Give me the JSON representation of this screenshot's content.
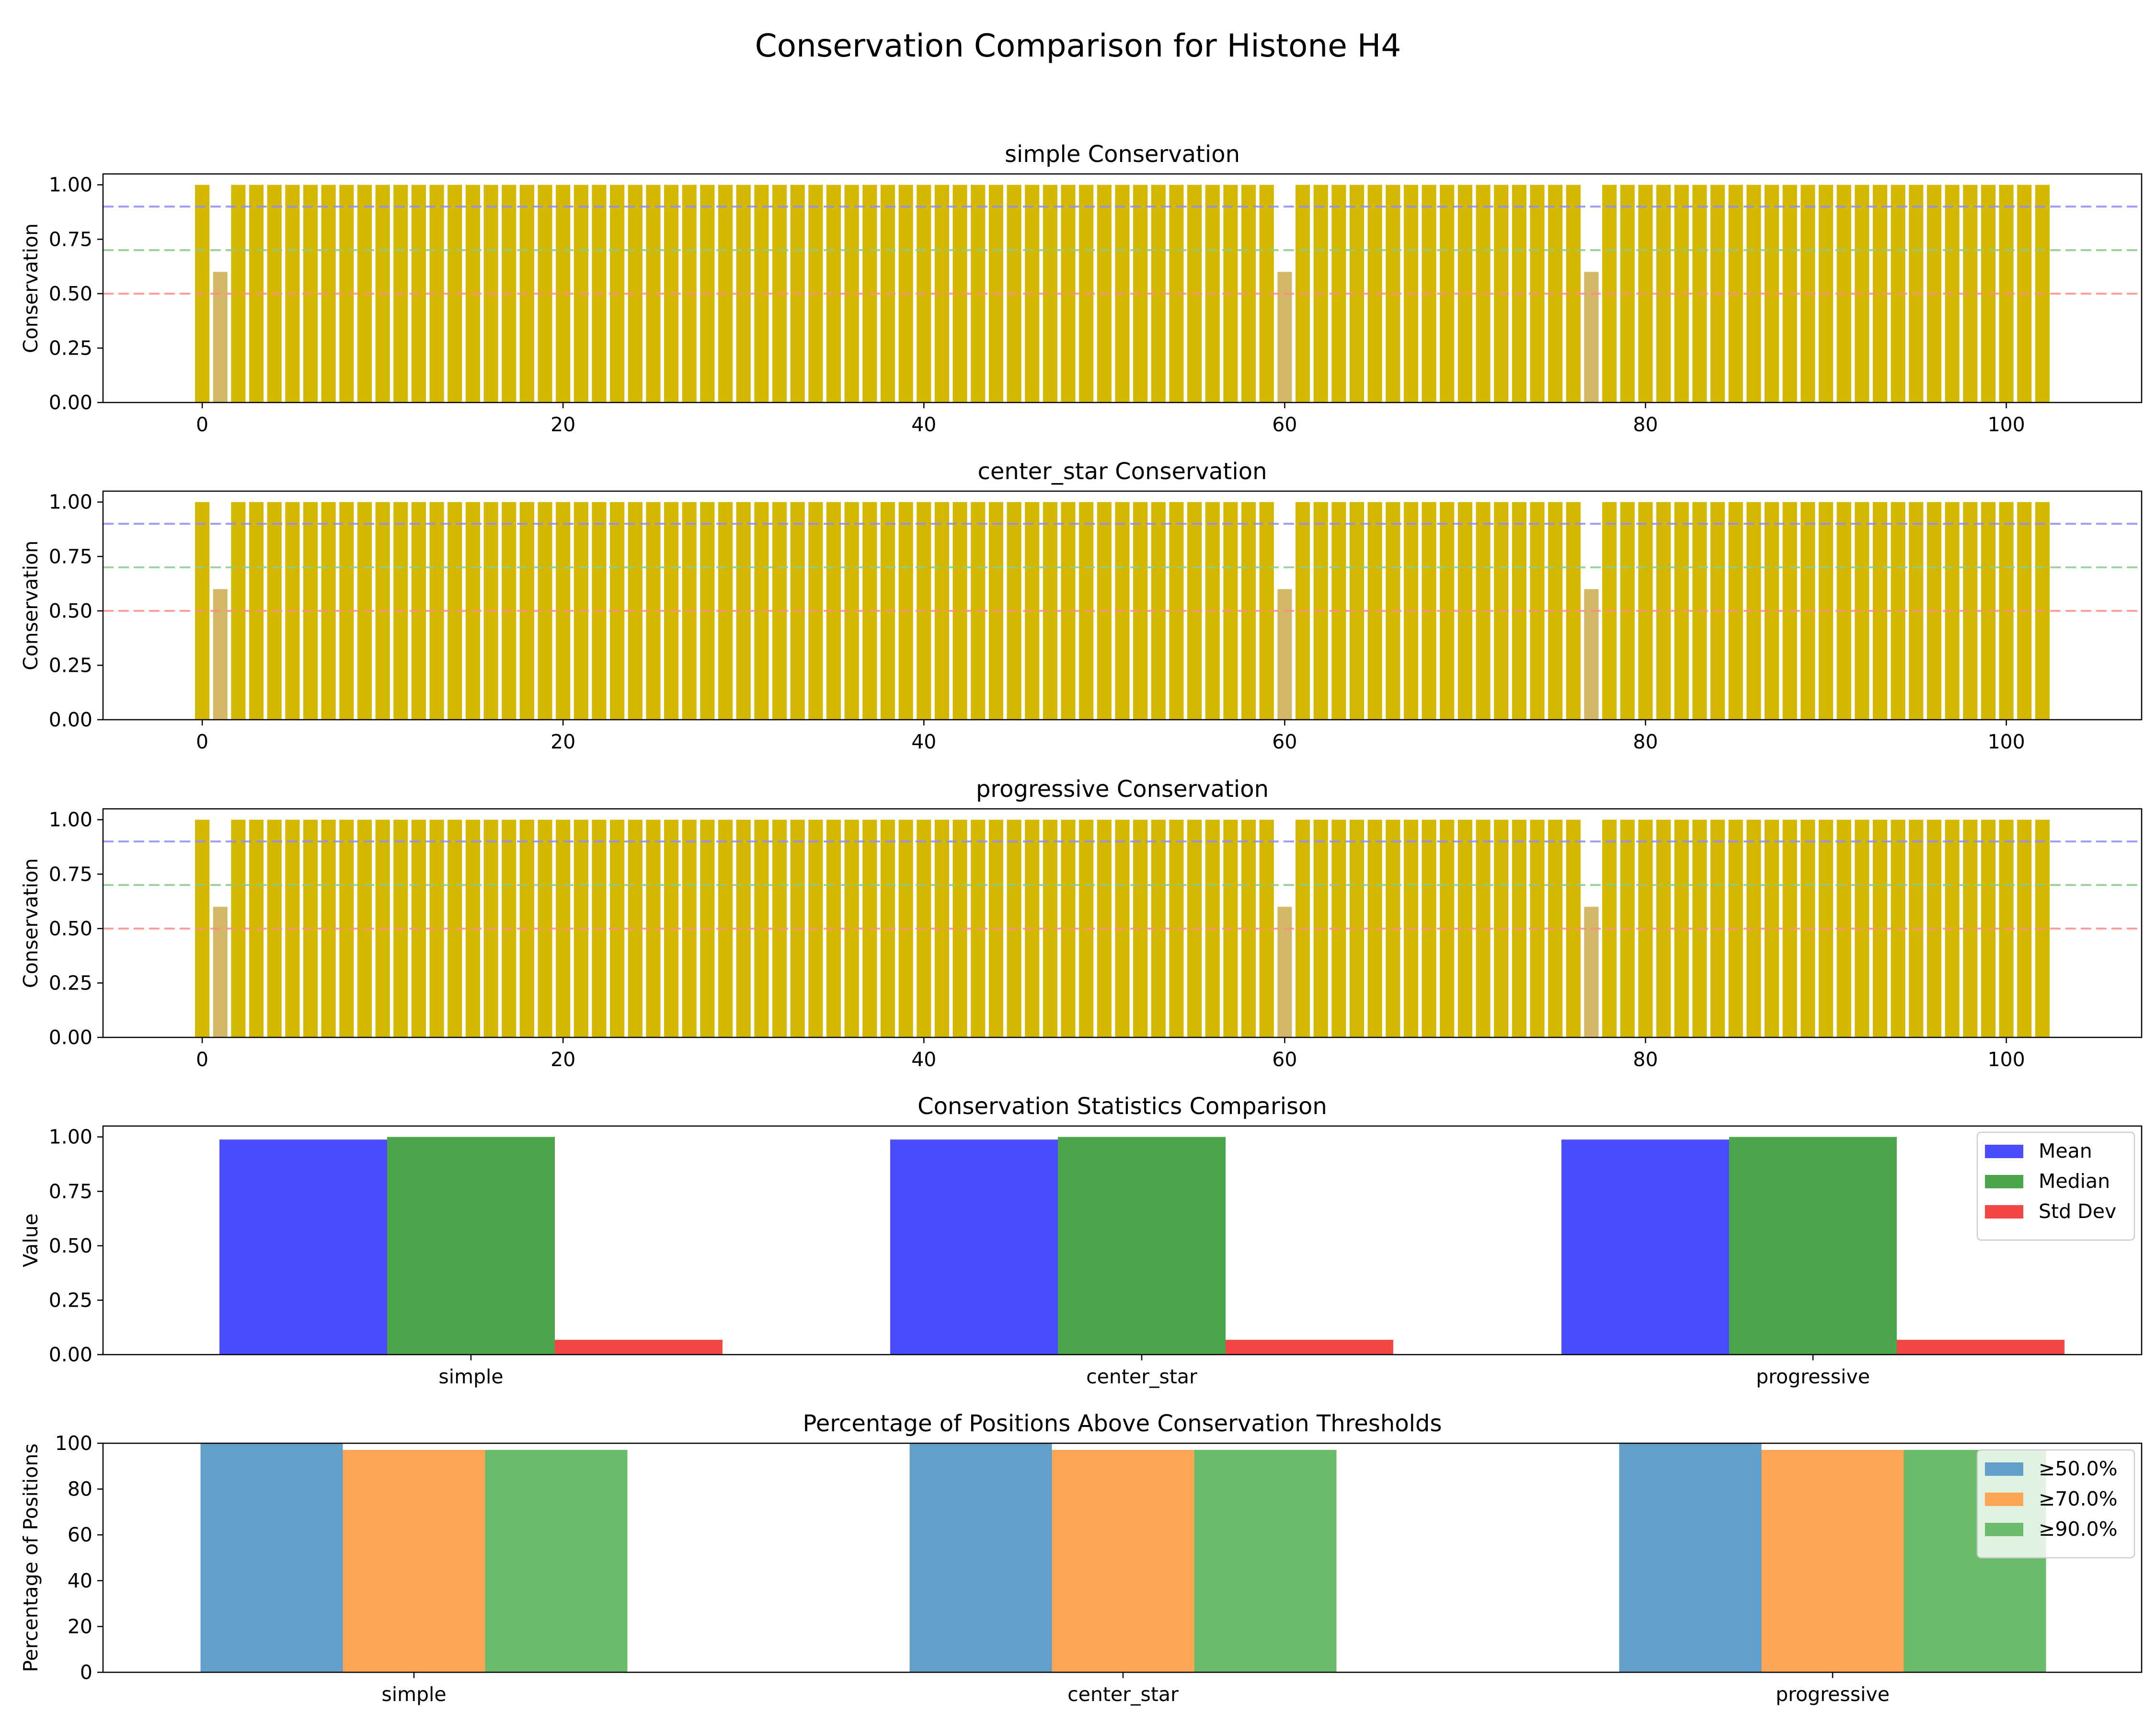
{
  "suptitle": "Conservation Comparison for Histone H4",
  "colors": {
    "conserved_bar": "#D4B800",
    "low_bar": "#D2B866",
    "thr_high": "#8C8CFF",
    "thr_mid": "#8CCB8C",
    "thr_low": "#FF8C8C",
    "mean": "#4B4BFF",
    "median": "#4BA64B",
    "std": "#F54646",
    "p50": "#62A0CA",
    "p70": "#FFA556",
    "p90": "#6ABC6A"
  },
  "chart_data": [
    {
      "type": "bar",
      "title": "simple Conservation",
      "ylabel": "Conservation",
      "positions": 103,
      "low_positions": [
        1,
        60,
        77
      ],
      "high_value": 1.0,
      "low_value": 0.6,
      "thresholds": [
        0.9,
        0.7,
        0.5
      ],
      "xlim": [
        -5.5,
        107.5
      ],
      "ylim": [
        0,
        1.05
      ],
      "xticks": [
        "0",
        "20",
        "40",
        "60",
        "80",
        "100"
      ],
      "yticks": [
        "0.00",
        "0.25",
        "0.50",
        "0.75",
        "1.00"
      ]
    },
    {
      "type": "bar",
      "title": "center_star Conservation",
      "ylabel": "Conservation",
      "positions": 103,
      "low_positions": [
        1,
        60,
        77
      ],
      "high_value": 1.0,
      "low_value": 0.6,
      "thresholds": [
        0.9,
        0.7,
        0.5
      ],
      "xlim": [
        -5.5,
        107.5
      ],
      "ylim": [
        0,
        1.05
      ],
      "xticks": [
        "0",
        "20",
        "40",
        "60",
        "80",
        "100"
      ],
      "yticks": [
        "0.00",
        "0.25",
        "0.50",
        "0.75",
        "1.00"
      ]
    },
    {
      "type": "bar",
      "title": "progressive Conservation",
      "ylabel": "Conservation",
      "positions": 103,
      "low_positions": [
        1,
        60,
        77
      ],
      "high_value": 1.0,
      "low_value": 0.6,
      "thresholds": [
        0.9,
        0.7,
        0.5
      ],
      "xlim": [
        -5.5,
        107.5
      ],
      "ylim": [
        0,
        1.05
      ],
      "xticks": [
        "0",
        "20",
        "40",
        "60",
        "80",
        "100"
      ],
      "yticks": [
        "0.00",
        "0.25",
        "0.50",
        "0.75",
        "1.00"
      ]
    },
    {
      "type": "bar",
      "title": "Conservation Statistics Comparison",
      "ylabel": "Value",
      "categories": [
        "simple",
        "center_star",
        "progressive"
      ],
      "series": [
        {
          "name": "Mean",
          "values": [
            0.988,
            0.988,
            0.988
          ]
        },
        {
          "name": "Median",
          "values": [
            1.0,
            1.0,
            1.0
          ]
        },
        {
          "name": "Std Dev",
          "values": [
            0.068,
            0.068,
            0.068
          ]
        }
      ],
      "ylim": [
        0,
        1.05
      ],
      "yticks": [
        "0.00",
        "0.25",
        "0.50",
        "0.75",
        "1.00"
      ],
      "legend": "top-right"
    },
    {
      "type": "bar",
      "title": "Percentage of Positions Above Conservation Thresholds",
      "ylabel": "Percentage of Positions",
      "categories": [
        "simple",
        "center_star",
        "progressive"
      ],
      "series": [
        {
          "name": "≥50.0%",
          "values": [
            100.0,
            100.0,
            100.0
          ]
        },
        {
          "name": "≥70.0%",
          "values": [
            97.1,
            97.1,
            97.1
          ]
        },
        {
          "name": "≥90.0%",
          "values": [
            97.1,
            97.1,
            97.1
          ]
        }
      ],
      "ylim": [
        0,
        100
      ],
      "yticks": [
        "0",
        "20",
        "40",
        "60",
        "80",
        "100"
      ],
      "legend": "top-right"
    }
  ]
}
